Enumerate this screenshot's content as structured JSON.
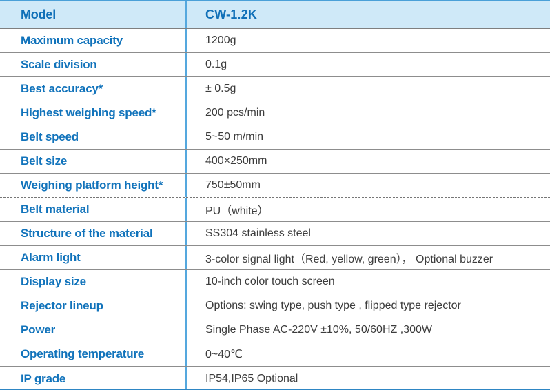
{
  "table": {
    "header": {
      "label": "Model",
      "value": "CW-1.2K"
    },
    "rows": [
      {
        "label": "Maximum capacity",
        "value": "1200g"
      },
      {
        "label": "Scale division",
        "value": "0.1g"
      },
      {
        "label": "Best accuracy*",
        "value": "± 0.5g"
      },
      {
        "label": "Highest weighing speed*",
        "value": "200 pcs/min"
      },
      {
        "label": "Belt speed",
        "value": "5~50 m/min"
      },
      {
        "label": "Belt size",
        "value": "400×250mm"
      },
      {
        "label": "Weighing platform height*",
        "value": "750±50mm",
        "separator_after": "dashed"
      },
      {
        "label": "Belt material",
        "value": "PU（white）"
      },
      {
        "label": "Structure of the material",
        "value": "SS304 stainless steel"
      },
      {
        "label": "Alarm light",
        "value": "3-color signal light（Red, yellow, green）， Optional buzzer"
      },
      {
        "label": "Display size",
        "value": "10-inch color touch screen"
      },
      {
        "label": "Rejector lineup",
        "value": "Options: swing type,  push type , flipped type rejector"
      },
      {
        "label": "Power",
        "value": "Single Phase AC-220V ±10%, 50/60HZ ,300W"
      },
      {
        "label": "Operating temperature",
        "value": "0~40℃"
      },
      {
        "label": "IP grade",
        "value": "IP54,IP65 Optional"
      }
    ],
    "colors": {
      "header_background": "#cfe9f8",
      "label_text": "#1173bb",
      "value_text": "#3c3c3c",
      "top_border": "#4aa0d8",
      "bottom_border": "#2e86c4",
      "column_divider": "#55a8de",
      "row_separator": "#8d8d8d"
    }
  }
}
